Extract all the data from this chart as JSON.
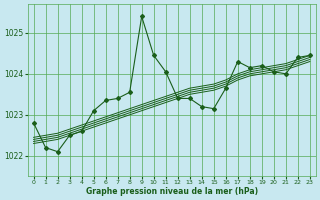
{
  "xlabel": "Graphe pression niveau de la mer (hPa)",
  "background_color": "#c8e8f0",
  "grid_color": "#55aa55",
  "line_color": "#1a5e1a",
  "xlim": [
    -0.5,
    23.5
  ],
  "ylim": [
    1021.5,
    1025.7
  ],
  "yticks": [
    1022,
    1023,
    1024,
    1025
  ],
  "xticks": [
    0,
    1,
    2,
    3,
    4,
    5,
    6,
    7,
    8,
    9,
    10,
    11,
    12,
    13,
    14,
    15,
    16,
    17,
    18,
    19,
    20,
    21,
    22,
    23
  ],
  "main_y": [
    1022.8,
    1022.2,
    1022.1,
    1022.5,
    1022.6,
    1023.1,
    1023.35,
    1023.4,
    1023.55,
    1025.4,
    1024.45,
    1024.05,
    1023.4,
    1023.4,
    1023.2,
    1023.15,
    1023.65,
    1024.3,
    1024.15,
    1024.2,
    1024.05,
    1024.0,
    1024.4,
    1024.45
  ],
  "smooth_lines": [
    [
      1022.3,
      1022.35,
      1022.4,
      1022.5,
      1022.6,
      1022.7,
      1022.8,
      1022.9,
      1023.0,
      1023.1,
      1023.2,
      1023.3,
      1023.4,
      1023.5,
      1023.55,
      1023.6,
      1023.7,
      1023.85,
      1023.95,
      1024.0,
      1024.05,
      1024.1,
      1024.2,
      1024.3
    ],
    [
      1022.35,
      1022.4,
      1022.45,
      1022.55,
      1022.65,
      1022.75,
      1022.85,
      1022.95,
      1023.05,
      1023.15,
      1023.25,
      1023.35,
      1023.45,
      1023.55,
      1023.6,
      1023.65,
      1023.75,
      1023.9,
      1024.0,
      1024.05,
      1024.1,
      1024.15,
      1024.25,
      1024.35
    ],
    [
      1022.4,
      1022.45,
      1022.5,
      1022.6,
      1022.7,
      1022.8,
      1022.9,
      1023.0,
      1023.1,
      1023.2,
      1023.3,
      1023.4,
      1023.5,
      1023.6,
      1023.65,
      1023.7,
      1023.8,
      1023.95,
      1024.05,
      1024.1,
      1024.15,
      1024.2,
      1024.3,
      1024.4
    ],
    [
      1022.45,
      1022.5,
      1022.55,
      1022.65,
      1022.75,
      1022.85,
      1022.95,
      1023.05,
      1023.15,
      1023.25,
      1023.35,
      1023.45,
      1023.55,
      1023.65,
      1023.7,
      1023.75,
      1023.85,
      1024.0,
      1024.1,
      1024.15,
      1024.2,
      1024.25,
      1024.35,
      1024.45
    ]
  ]
}
